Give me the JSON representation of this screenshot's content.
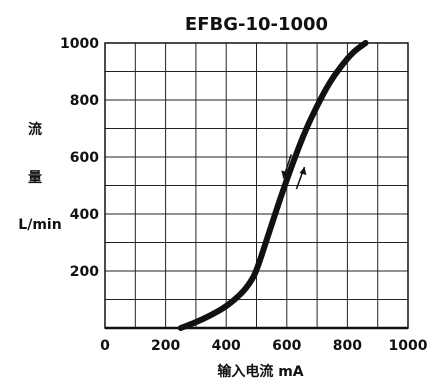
{
  "chart_data": {
    "type": "line",
    "title": "EFBG-10-1000",
    "xlabel": "输入电流  mA",
    "ylabel": [
      "流",
      "量",
      "L/min"
    ],
    "xlim": [
      0,
      1000
    ],
    "ylim": [
      0,
      1000
    ],
    "x_ticks": [
      0,
      200,
      400,
      600,
      800,
      1000
    ],
    "y_ticks": [
      200,
      400,
      600,
      800,
      1000
    ],
    "x_tick_labels": [
      "0",
      "200",
      "400",
      "600",
      "800",
      "1000"
    ],
    "y_tick_labels": [
      "200",
      "400",
      "600",
      "800",
      "1000"
    ],
    "grid": true,
    "legend": "none",
    "series": [
      {
        "color": "#111111",
        "x": [
          250,
          300,
          350,
          400,
          450,
          480,
          500,
          540,
          580,
          620,
          660,
          700,
          740,
          780,
          820,
          860
        ],
        "y": [
          0,
          20,
          45,
          75,
          120,
          160,
          200,
          330,
          460,
          580,
          690,
          780,
          860,
          920,
          970,
          1000
        ]
      }
    ],
    "annotations": [
      {
        "type": "arrow-down",
        "x": 595,
        "y": 560
      },
      {
        "type": "arrow-up",
        "x": 645,
        "y": 530
      }
    ]
  }
}
